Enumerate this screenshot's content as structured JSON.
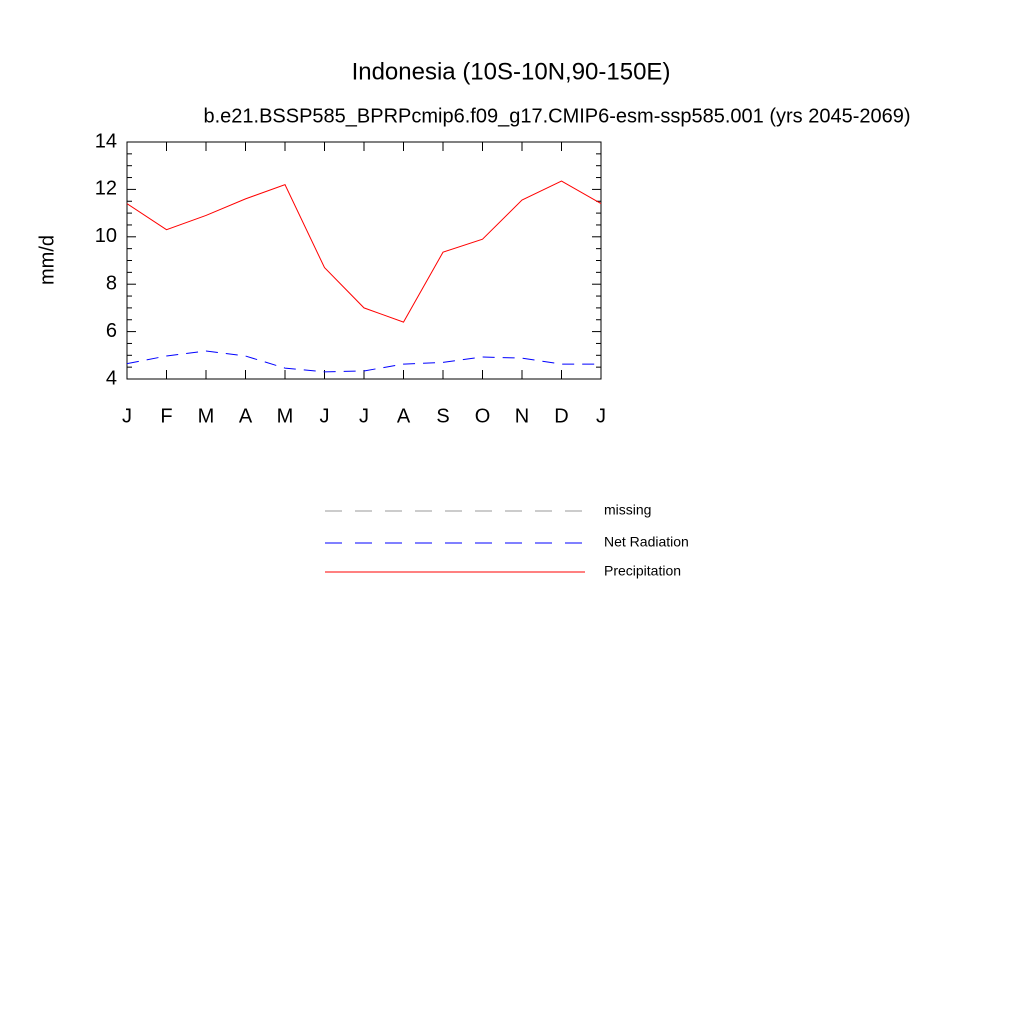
{
  "chart_data": {
    "type": "line",
    "title": "Indonesia (10S-10N,90-150E)",
    "subtitle": "b.e21.BSSP585_BPRPcmip6.f09_g17.CMIP6-esm-ssp585.001 (yrs 2045-2069)",
    "y_label": "mm/d",
    "categories": [
      "J",
      "F",
      "M",
      "A",
      "M",
      "J",
      "J",
      "A",
      "S",
      "O",
      "N",
      "D",
      "J"
    ],
    "ylim": [
      4,
      14
    ],
    "yticks": [
      4,
      6,
      8,
      10,
      12,
      14
    ],
    "series": [
      {
        "name": "missing",
        "color": "#999999",
        "dashed": true,
        "values": [
          null,
          null,
          null,
          null,
          null,
          null,
          null,
          null,
          null,
          null,
          null,
          null,
          null
        ]
      },
      {
        "name": "Net Radiation",
        "color": "#0000ff",
        "dashed": true,
        "values": [
          4.65,
          4.97,
          5.18,
          4.97,
          4.46,
          4.3,
          4.34,
          4.63,
          4.7,
          4.93,
          4.88,
          4.63,
          4.63
        ]
      },
      {
        "name": "Precipitation",
        "color": "#ff0000",
        "dashed": false,
        "values": [
          11.4,
          10.3,
          10.9,
          11.6,
          12.2,
          8.7,
          7.0,
          6.4,
          9.35,
          9.9,
          11.55,
          12.35,
          11.4
        ]
      }
    ]
  }
}
